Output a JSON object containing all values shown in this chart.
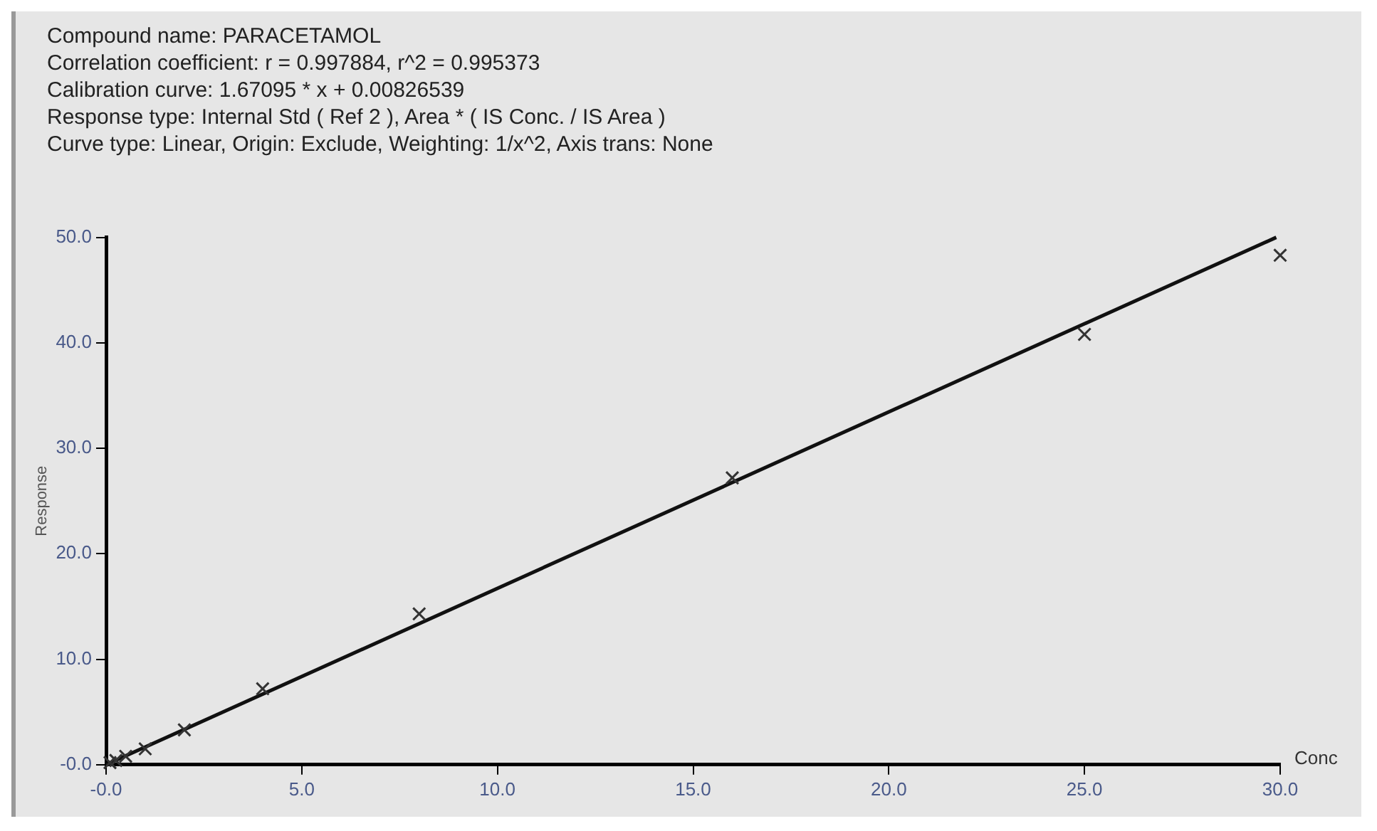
{
  "chart_data": {
    "type": "scatter",
    "title": "Compound name: PARACETAMOL",
    "annotations": [
      "Correlation coefficient: r = 0.997884, r^2 = 0.995373",
      "Calibration curve: 1.67095 * x + 0.00826539",
      "Response type: Internal Std ( Ref 2 ), Area * ( IS Conc. / IS Area )",
      "Curve type: Linear, Origin: Exclude, Weighting: 1/x^2, Axis trans: None"
    ],
    "xlabel": "Conc",
    "ylabel": "Response",
    "series": [
      {
        "color": "#333333",
        "marker": "cross",
        "x": [
          0.1,
          0.25,
          0.5,
          1,
          2,
          4,
          8,
          16,
          25,
          30
        ],
        "values": [
          0.2,
          0.4,
          0.8,
          1.5,
          3.3,
          7.2,
          14.3,
          27.2,
          40.8,
          48.3
        ]
      },
      {
        "type": "line",
        "color": "#111111",
        "marker": "none",
        "x": [
          0,
          29.9
        ],
        "values": [
          0.0,
          50.0
        ]
      }
    ],
    "xlim": [
      0,
      30
    ],
    "ylim": [
      0,
      50
    ],
    "xticks": [
      {
        "value": 0,
        "label": "-0.0"
      },
      {
        "value": 5,
        "label": "5.0"
      },
      {
        "value": 10,
        "label": "10.0"
      },
      {
        "value": 15,
        "label": "15.0"
      },
      {
        "value": 20,
        "label": "20.0"
      },
      {
        "value": 25,
        "label": "25.0"
      },
      {
        "value": 30,
        "label": "30.0"
      }
    ],
    "yticks": [
      {
        "value": 0,
        "label": "-0.0"
      },
      {
        "value": 10,
        "label": "10.0"
      },
      {
        "value": 20,
        "label": "20.0"
      },
      {
        "value": 30,
        "label": "30.0"
      },
      {
        "value": 40,
        "label": "40.0"
      },
      {
        "value": 50,
        "label": "50.0"
      }
    ],
    "grid": false,
    "legend": false
  }
}
